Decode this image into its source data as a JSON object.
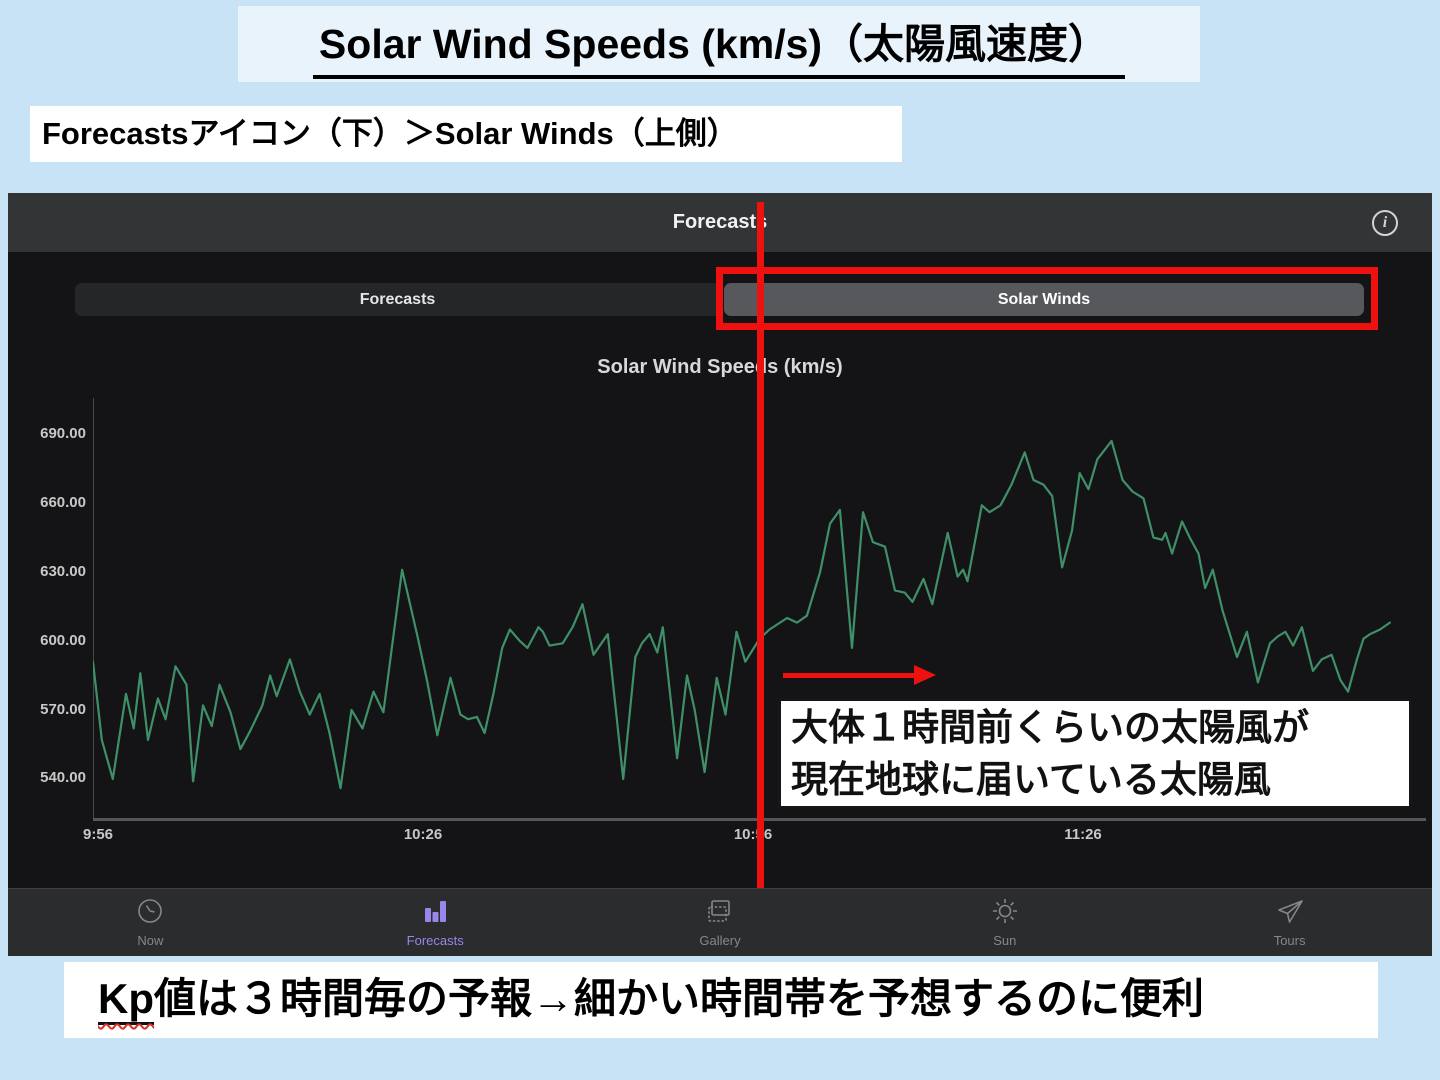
{
  "slide": {
    "title": "Solar Wind Speeds (km/s)（太陽風速度）",
    "instruction": "Forecastsアイコン（下）＞Solar Winds（上側）",
    "bottom_note_kp": "Kp",
    "bottom_note_rest": "値は３時間毎の予報→細かい時間帯を予想するのに便利"
  },
  "app": {
    "header": {
      "title": "Forecasts",
      "info_glyph": "i"
    },
    "segments": [
      {
        "label": "Forecasts",
        "active": false
      },
      {
        "label": "Solar Winds",
        "active": true,
        "highlight": "red-frame"
      }
    ],
    "annotation": {
      "line1": "大体１時間前くらいの太陽風が",
      "line2": "現在地球に届いている太陽風"
    },
    "tabs": [
      {
        "label": "Now",
        "icon": "clock-icon",
        "active": false
      },
      {
        "label": "Forecasts",
        "icon": "bar-chart-icon",
        "active": true
      },
      {
        "label": "Gallery",
        "icon": "gallery-icon",
        "active": false
      },
      {
        "label": "Sun",
        "icon": "sun-icon",
        "active": false
      },
      {
        "label": "Tours",
        "icon": "airplane-icon",
        "active": false
      }
    ]
  },
  "colors": {
    "slide_bg": "#c9e3f6",
    "title_box_bg": "#e9f3fc",
    "app_bg": "#141416",
    "header_bg": "#323436",
    "segment_selected_bg": "#56585c",
    "annotation_red": "#ef1010",
    "line_green": "#3f9068",
    "tab_active_purple": "#9a85ea",
    "tab_inactive_gray": "#87878b"
  },
  "chart_data": {
    "type": "line",
    "title": "Solar Wind Speeds (km/s)",
    "xlabel": "",
    "ylabel": "",
    "grid": false,
    "legend": false,
    "line_color": "#3f9068",
    "y_ticks": [
      690,
      660,
      630,
      600,
      570,
      540
    ],
    "y_tick_labels": [
      "690.00",
      "660.00",
      "630.00",
      "600.00",
      "570.00",
      "540.00"
    ],
    "ylim": [
      528,
      702
    ],
    "x_tick_labels": [
      "9:56",
      "10:26",
      "10:56",
      "11:26"
    ],
    "x_tick_minutes": [
      0,
      30,
      60,
      90
    ],
    "x_range_minutes": [
      0,
      120
    ],
    "red_marker_line_minute": 60.6,
    "series": [
      {
        "name": "solar-wind-speed-kms",
        "points": [
          [
            0,
            591
          ],
          [
            0.8,
            557
          ],
          [
            1.8,
            540
          ],
          [
            3,
            577
          ],
          [
            3.7,
            562
          ],
          [
            4.3,
            586
          ],
          [
            5,
            557
          ],
          [
            5.9,
            575
          ],
          [
            6.6,
            566
          ],
          [
            7.5,
            589
          ],
          [
            8.5,
            581
          ],
          [
            9.1,
            539
          ],
          [
            10,
            572
          ],
          [
            10.8,
            563
          ],
          [
            11.5,
            581
          ],
          [
            12.5,
            569
          ],
          [
            13.4,
            553
          ],
          [
            14.3,
            561
          ],
          [
            15.4,
            572
          ],
          [
            16.1,
            585
          ],
          [
            16.7,
            576
          ],
          [
            17.9,
            592
          ],
          [
            18.8,
            578
          ],
          [
            19.7,
            568
          ],
          [
            20.6,
            577
          ],
          [
            21.5,
            560
          ],
          [
            22.5,
            536
          ],
          [
            23.5,
            570
          ],
          [
            24.5,
            562
          ],
          [
            25.5,
            578
          ],
          [
            26.4,
            569
          ],
          [
            28.1,
            631
          ],
          [
            29.5,
            602
          ],
          [
            30.4,
            582
          ],
          [
            31.3,
            559
          ],
          [
            32.5,
            584
          ],
          [
            33.4,
            568
          ],
          [
            34.1,
            566
          ],
          [
            34.9,
            567
          ],
          [
            35.6,
            560
          ],
          [
            36.4,
            577
          ],
          [
            37.2,
            597
          ],
          [
            37.9,
            605
          ],
          [
            38.8,
            600
          ],
          [
            39.5,
            597
          ],
          [
            40.5,
            606
          ],
          [
            40.9,
            604
          ],
          [
            41.5,
            598
          ],
          [
            42.7,
            599
          ],
          [
            43.6,
            606
          ],
          [
            44.5,
            616
          ],
          [
            45.5,
            594
          ],
          [
            46.8,
            603
          ],
          [
            48.2,
            540
          ],
          [
            49.3,
            593
          ],
          [
            49.9,
            599
          ],
          [
            50.6,
            603
          ],
          [
            51.3,
            595
          ],
          [
            51.8,
            606
          ],
          [
            53.1,
            549
          ],
          [
            54,
            585
          ],
          [
            54.7,
            570
          ],
          [
            55.6,
            543
          ],
          [
            56.7,
            584
          ],
          [
            57.5,
            568
          ],
          [
            58.5,
            604
          ],
          [
            59.3,
            591
          ],
          [
            60.6,
            601
          ],
          [
            61.5,
            605
          ],
          [
            63.1,
            610
          ],
          [
            64,
            608
          ],
          [
            64.9,
            611
          ],
          [
            66.1,
            630
          ],
          [
            67,
            651
          ],
          [
            67.9,
            657
          ],
          [
            69,
            597
          ],
          [
            70,
            656
          ],
          [
            70.9,
            643
          ],
          [
            72,
            641
          ],
          [
            72.9,
            622
          ],
          [
            73.8,
            621
          ],
          [
            74.5,
            617
          ],
          [
            75.5,
            627
          ],
          [
            76.3,
            616
          ],
          [
            77.7,
            647
          ],
          [
            78.6,
            628
          ],
          [
            79.1,
            631
          ],
          [
            79.5,
            626
          ],
          [
            80.8,
            659
          ],
          [
            81.5,
            656
          ],
          [
            82.5,
            659
          ],
          [
            83.5,
            668
          ],
          [
            84.7,
            682
          ],
          [
            85.5,
            670
          ],
          [
            86.4,
            668
          ],
          [
            87.2,
            663
          ],
          [
            88.1,
            632
          ],
          [
            89,
            648
          ],
          [
            89.7,
            673
          ],
          [
            90.5,
            666
          ],
          [
            91.3,
            679
          ],
          [
            92.6,
            687
          ],
          [
            93.6,
            670
          ],
          [
            94.5,
            665
          ],
          [
            95.5,
            662
          ],
          [
            96.4,
            645
          ],
          [
            97.2,
            644
          ],
          [
            97.5,
            647
          ],
          [
            98.1,
            638
          ],
          [
            99,
            652
          ],
          [
            99.7,
            645
          ],
          [
            100.5,
            638
          ],
          [
            101.1,
            623
          ],
          [
            101.8,
            631
          ],
          [
            102.7,
            613
          ],
          [
            104,
            593
          ],
          [
            104.9,
            604
          ],
          [
            105.9,
            582
          ],
          [
            107,
            599
          ],
          [
            107.7,
            602
          ],
          [
            108.4,
            604
          ],
          [
            109.1,
            598
          ],
          [
            109.9,
            606
          ],
          [
            110.9,
            587
          ],
          [
            111.7,
            592
          ],
          [
            112.6,
            594
          ],
          [
            113.4,
            583
          ],
          [
            114.1,
            578
          ],
          [
            114.9,
            592
          ],
          [
            115.5,
            601
          ],
          [
            116.1,
            603
          ],
          [
            117,
            605
          ],
          [
            117.9,
            608
          ]
        ]
      }
    ]
  }
}
